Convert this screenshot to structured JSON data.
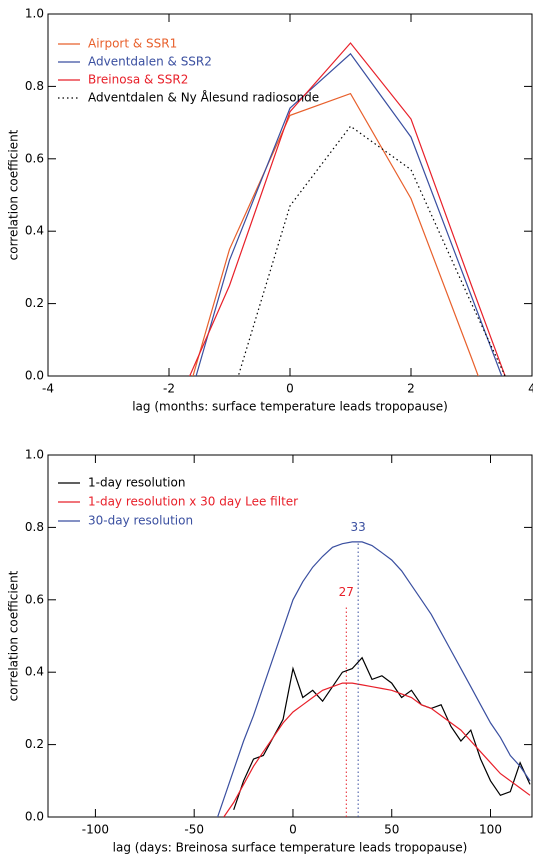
{
  "chart_data": [
    {
      "type": "line",
      "xlabel": "lag (months: surface temperature leads tropopause)",
      "ylabel": "correlation coefficient",
      "x": [
        -2,
        -1,
        0,
        1,
        2,
        3,
        4
      ],
      "series": [
        {
          "name": "Airport & SSR1",
          "color": "#e8602c",
          "style": "solid",
          "values": [
            -0.23,
            0.35,
            0.72,
            0.78,
            0.49,
            0.05,
            -0.4
          ]
        },
        {
          "name": "Adventdalen & SSR2",
          "color": "#3a4fa0",
          "style": "solid",
          "values": [
            -0.26,
            0.32,
            0.74,
            0.89,
            0.66,
            0.22,
            -0.22
          ]
        },
        {
          "name": "Breinosa & SSR2",
          "color": "#e8202a",
          "style": "solid",
          "values": [
            -0.13,
            0.25,
            0.73,
            0.92,
            0.71,
            0.25,
            -0.2
          ]
        },
        {
          "name": "Adventdalen & Ny Ålesund radiosonde",
          "color": "#000000",
          "style": "dotted",
          "values": [
            -0.6,
            -0.08,
            0.47,
            0.69,
            0.57,
            0.2,
            -0.16
          ]
        }
      ],
      "xlim": [
        -4,
        4
      ],
      "ylim": [
        0,
        1
      ],
      "xticks": [
        -4,
        -2,
        0,
        2,
        4
      ],
      "yticks": [
        {
          "value": 0,
          "label": "0.0"
        },
        {
          "value": 0.2,
          "label": "0.2"
        },
        {
          "value": 0.4,
          "label": "0.4"
        },
        {
          "value": 0.6,
          "label": "0.6"
        },
        {
          "value": 0.8,
          "label": "0.8"
        },
        {
          "value": 1,
          "label": "1.0"
        }
      ],
      "legend": "upper left",
      "grid": false
    },
    {
      "type": "line",
      "xlabel": "lag (days: Breinosa surface temperature leads tropopause)",
      "ylabel": "correlation coefficient",
      "x": [
        -40,
        -35,
        -30,
        -25,
        -20,
        -15,
        -10,
        -5,
        0,
        5,
        10,
        15,
        20,
        25,
        30,
        35,
        40,
        45,
        50,
        55,
        60,
        65,
        70,
        75,
        80,
        85,
        90,
        95,
        100,
        105,
        110,
        115,
        120
      ],
      "series": [
        {
          "name": "1-day resolution",
          "color": "#000000",
          "style": "solid",
          "values": [
            null,
            null,
            0.02,
            0.1,
            0.16,
            0.17,
            0.22,
            0.27,
            0.41,
            0.33,
            0.35,
            0.32,
            0.36,
            0.4,
            0.41,
            0.44,
            0.38,
            0.39,
            0.37,
            0.33,
            0.35,
            0.31,
            0.3,
            0.31,
            0.25,
            0.21,
            0.24,
            0.16,
            0.1,
            0.06,
            0.07,
            0.15,
            0.09
          ]
        },
        {
          "name": "1-day resolution x 30 day Lee filter",
          "color": "#e8202a",
          "style": "solid",
          "values": [
            null,
            0.0,
            0.04,
            0.09,
            0.14,
            0.18,
            0.22,
            0.26,
            0.29,
            0.31,
            0.33,
            0.35,
            0.36,
            0.37,
            0.37,
            0.365,
            0.36,
            0.355,
            0.35,
            0.34,
            0.33,
            0.31,
            0.3,
            0.28,
            0.26,
            0.24,
            0.21,
            0.18,
            0.15,
            0.12,
            0.1,
            0.08,
            0.06
          ]
        },
        {
          "name": "30-day resolution",
          "color": "#3a4fa0",
          "style": "solid",
          "values": [
            -0.03,
            0.05,
            0.13,
            0.21,
            0.28,
            0.36,
            0.44,
            0.52,
            0.6,
            0.65,
            0.69,
            0.72,
            0.745,
            0.755,
            0.76,
            0.76,
            0.75,
            0.73,
            0.71,
            0.68,
            0.64,
            0.6,
            0.56,
            0.51,
            0.46,
            0.41,
            0.36,
            0.31,
            0.26,
            0.22,
            0.17,
            0.14,
            0.1
          ]
        }
      ],
      "annotations": [
        {
          "text": "27",
          "x": 27,
          "color": "#e8202a"
        },
        {
          "text": "33",
          "x": 33,
          "color": "#3a4fa0"
        }
      ],
      "xlim": [
        -124,
        121
      ],
      "ylim": [
        0,
        1
      ],
      "xticks": [
        -100,
        -50,
        0,
        50,
        100
      ],
      "yticks": [
        {
          "value": 0,
          "label": "0.0"
        },
        {
          "value": 0.2,
          "label": "0.2"
        },
        {
          "value": 0.4,
          "label": "0.4"
        },
        {
          "value": 0.6,
          "label": "0.6"
        },
        {
          "value": 0.8,
          "label": "0.8"
        },
        {
          "value": 1,
          "label": "1.0"
        }
      ],
      "legend": "upper left",
      "grid": false
    }
  ]
}
